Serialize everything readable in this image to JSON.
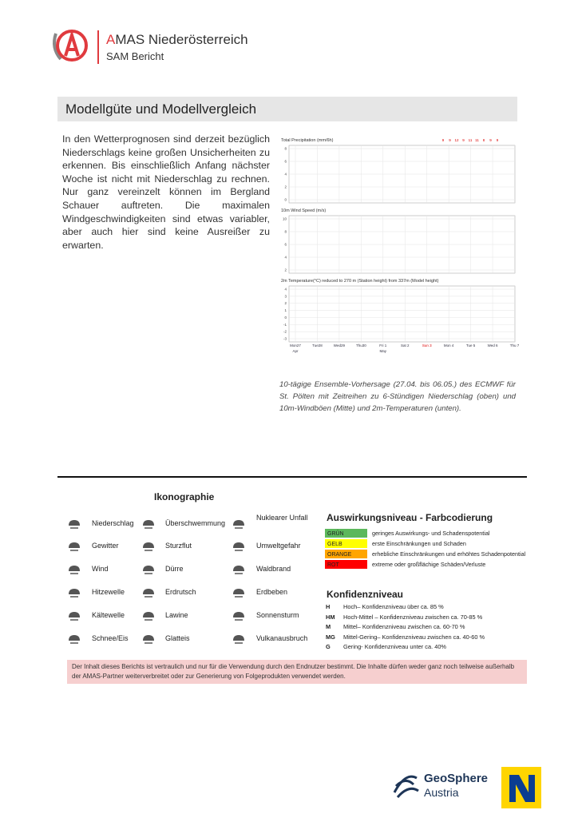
{
  "header": {
    "title": "AMAS Niederösterreich",
    "subtitle": "SAM Bericht"
  },
  "section": {
    "heading": "Modellgüte und Modellvergleich",
    "paragraph": "In den Wetterprognosen sind derzeit bezüglich Niederschlags keine großen Unsicherheiten zu erkennen. Bis einschließlich Anfang nächster Woche ist nicht mit Niederschlag zu rechnen. Nur ganz vereinzelt können im Bergland Schauer auftreten. Die maximalen Windgeschwindigkeiten sind etwas variabler, aber auch hier sind keine Ausreißer zu erwarten."
  },
  "figure": {
    "panels": [
      {
        "title": "Total Precipitation (mm/6h)",
        "yticks": [
          "8",
          "6",
          "4",
          "2",
          "0"
        ]
      },
      {
        "title": "10m Wind Speed (m/s)",
        "yticks": [
          "10",
          "8",
          "6",
          "4",
          "2"
        ]
      },
      {
        "title": "2m Temperature(°C) reduced to 270 m (Station height) from 337m (Model height)",
        "yticks": [
          "4",
          "3",
          "2",
          "1",
          "0",
          "-1",
          "-2",
          "-3"
        ]
      }
    ],
    "annotations": [
      "9",
      "9",
      "12",
      "9",
      "11",
      "11",
      "8",
      "9",
      "9"
    ],
    "x_labels": [
      "Mon27",
      "Tue28",
      "Wed29",
      "Thu30",
      "Fri 1",
      "Sat 2",
      "Sun 3",
      "Mon 4",
      "Tue 5",
      "Wed 6",
      "Thu 7"
    ],
    "x_sublabels": [
      "Apr",
      null,
      null,
      null,
      "May",
      null,
      null,
      null,
      null,
      null,
      null
    ],
    "caption": "10-tägige Ensemble-Vorhersage (27.04. bis 06.05.) des ECMWF für St. Pölten mit Zeitreihen zu 6-Stündigen Niederschlag (oben) und 10m-Windböen (Mitte) und 2m-Temperaturen (unten)."
  },
  "icons": {
    "title": "Ikonographie",
    "items": [
      "Niederschlag",
      "Überschwemmung",
      "Nuklearer Unfall",
      "Gewitter",
      "Sturzflut",
      "Umweltgefahr",
      "Wind",
      "Dürre",
      "Waldbrand",
      "Hitzewelle",
      "Erdrutsch",
      "Erdbeben",
      "Kältewelle",
      "Lawine",
      "Sonnensturm",
      "Schnee/Eis",
      "Glatteis",
      "Vulkanausbruch"
    ]
  },
  "impact": {
    "title": "Auswirkungsniveau - Farbcodierung",
    "rows": [
      {
        "label": "GRÜN",
        "color": "#5cb85c",
        "text": "geringes Auswirkungs- und Schadenspotential"
      },
      {
        "label": "GELB",
        "color": "#ffff00",
        "text": "erste Einschränkungen und Schaden"
      },
      {
        "label": "ORANGE",
        "color": "#ffa500",
        "text": "erhebliche Einschränkungen und erhöhtes Schadenpotential"
      },
      {
        "label": "ROT",
        "color": "#ff0000",
        "text": "extreme oder großflächige Schäden/Verluste"
      }
    ]
  },
  "confidence": {
    "title": "Konfidenzniveau",
    "rows": [
      {
        "code": "H",
        "text": "Hoch– Konfidenzniveau über ca. 85 %"
      },
      {
        "code": "HM",
        "text": "Hoch-Mittel – Konfidenzniveau zwischen ca. 70-85 %"
      },
      {
        "code": "M",
        "text": "Mittel– Konfidenzniveau zwischen ca. 60-70 %"
      },
      {
        "code": "MG",
        "text": "Mittel-Gering– Konfidenzniveau zwischen ca. 40-60 %"
      },
      {
        "code": "G",
        "text": "Gering- Konfidenzniveau unter ca. 40%"
      }
    ]
  },
  "disclaimer": "Der Inhalt dieses Berichts ist vertraulich und nur für die Verwendung durch den Endnutzer bestimmt. Die Inhalte dürfen weder ganz noch teilweise außerhalb der AMAS-Partner weiterverbreitet oder zur Generierung von Folgeprodukten verwendet werden.",
  "footer": {
    "brand": "GeoSphere",
    "brand_sub": "Austria"
  }
}
